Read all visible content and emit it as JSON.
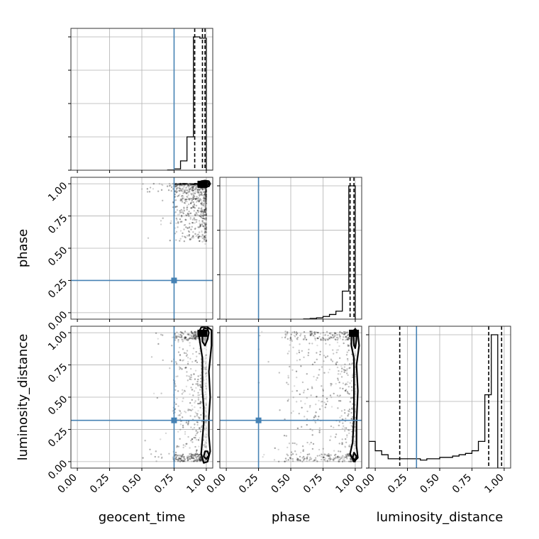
{
  "chart_data": {
    "type": "corner",
    "parameters": [
      "geocent_time",
      "phase",
      "luminosity_distance"
    ],
    "axis_labels": {
      "geocent_time": "geocent_time",
      "phase": "phase",
      "luminosity_distance": "luminosity_distance"
    },
    "range": [
      -0.05,
      1.05
    ],
    "ticks": [
      0.0,
      0.25,
      0.5,
      0.75,
      1.0
    ],
    "tick_labels": [
      "0.00",
      "0.25",
      "0.50",
      "0.75",
      "1.00"
    ],
    "truths": {
      "geocent_time": 0.75,
      "phase": 0.25,
      "luminosity_distance": 0.32
    },
    "truth_color": "#4682b4",
    "grid": true,
    "histograms": [
      {
        "param": "geocent_time",
        "bins": [
          0.7,
          0.75,
          0.8,
          0.85,
          0.9,
          0.95,
          1.0,
          1.05
        ],
        "counts": [
          0.2,
          1,
          7,
          25,
          100,
          99,
          0
        ],
        "quantiles": [
          0.91,
          0.97,
          0.99
        ],
        "y_tick_count": 5
      },
      {
        "param": "phase",
        "bins": [
          0.6,
          0.65,
          0.7,
          0.75,
          0.8,
          0.85,
          0.9,
          0.95,
          1.0
        ],
        "counts": [
          0.2,
          0.5,
          1,
          2,
          3.5,
          6,
          21,
          100
        ],
        "quantiles": [
          0.96,
          0.99
        ],
        "y_tick_count": 4
      },
      {
        "param": "luminosity_distance",
        "bins": [
          -0.05,
          0.0,
          0.05,
          0.1,
          0.15,
          0.2,
          0.25,
          0.3,
          0.35,
          0.4,
          0.45,
          0.5,
          0.55,
          0.6,
          0.65,
          0.7,
          0.75,
          0.8,
          0.85,
          0.9,
          0.95,
          1.0
        ],
        "counts": [
          0.2,
          0.13,
          0.1,
          0.07,
          0.07,
          0.07,
          0.07,
          0.07,
          0.06,
          0.07,
          0.07,
          0.08,
          0.08,
          0.09,
          0.1,
          0.11,
          0.13,
          0.2,
          0.55,
          1.0,
          0.0
        ],
        "quantiles": [
          0.19,
          0.88,
          0.98
        ],
        "y_tick_count": 3
      }
    ],
    "scatter_panels": [
      {
        "x": "geocent_time",
        "y": "phase",
        "core": [
          0.97,
          0.99
        ],
        "contour_1": [
          [
            0.94,
            1.0
          ],
          [
            0.96,
            1.02
          ],
          [
            0.99,
            1.025
          ],
          [
            1.02,
            1.02
          ],
          [
            1.03,
            1.0
          ],
          [
            1.02,
            0.98
          ],
          [
            0.99,
            0.975
          ],
          [
            0.96,
            0.98
          ]
        ],
        "contour_2": [
          [
            0.95,
            1.0
          ],
          [
            0.97,
            1.01
          ],
          [
            0.99,
            1.015
          ],
          [
            1.01,
            1.01
          ],
          [
            1.02,
            1.0
          ],
          [
            1.01,
            0.99
          ],
          [
            0.99,
            0.985
          ],
          [
            0.97,
            0.99
          ]
        ]
      },
      {
        "x": "geocent_time",
        "y": "luminosity_distance",
        "core": [
          0.97,
          0.99
        ],
        "contour_1": [
          [
            0.94,
            1.0
          ],
          [
            0.95,
            0.93
          ],
          [
            0.97,
            0.8
          ],
          [
            0.97,
            0.55
          ],
          [
            0.98,
            0.42
          ],
          [
            0.98,
            0.3
          ],
          [
            0.97,
            0.18
          ],
          [
            0.96,
            0.06
          ],
          [
            0.98,
            -0.01
          ],
          [
            1.01,
            0.0
          ],
          [
            1.03,
            0.08
          ],
          [
            1.02,
            0.2
          ],
          [
            1.02,
            0.35
          ],
          [
            1.03,
            0.5
          ],
          [
            1.02,
            0.7
          ],
          [
            1.04,
            0.9
          ],
          [
            1.04,
            1.02
          ],
          [
            1.0,
            1.05
          ],
          [
            0.96,
            1.04
          ]
        ],
        "contour_2": [
          [
            0.97,
            1.0
          ],
          [
            0.97,
            0.93
          ],
          [
            0.99,
            0.9
          ],
          [
            1.01,
            0.95
          ],
          [
            1.02,
            1.0
          ],
          [
            1.01,
            1.03
          ],
          [
            0.99,
            1.035
          ],
          [
            0.98,
            1.03
          ]
        ],
        "bottom_lobe": [
          [
            0.98,
            0.04
          ],
          [
            1.0,
            0.02
          ],
          [
            1.02,
            0.05
          ],
          [
            1.01,
            0.08
          ],
          [
            0.99,
            0.08
          ]
        ]
      },
      {
        "x": "phase",
        "y": "luminosity_distance",
        "core": [
          0.99,
          0.99
        ],
        "contour_1": [
          [
            0.97,
            1.0
          ],
          [
            0.97,
            0.9
          ],
          [
            0.99,
            0.8
          ],
          [
            0.99,
            0.55
          ],
          [
            0.99,
            0.35
          ],
          [
            0.98,
            0.15
          ],
          [
            0.96,
            0.06
          ],
          [
            0.99,
            0.0
          ],
          [
            1.02,
            0.03
          ],
          [
            1.01,
            0.12
          ],
          [
            1.01,
            0.3
          ],
          [
            1.02,
            0.55
          ],
          [
            1.01,
            0.75
          ],
          [
            1.03,
            0.9
          ],
          [
            1.02,
            1.0
          ],
          [
            1.0,
            1.03
          ]
        ],
        "contour_2": [
          [
            0.985,
            0.98
          ],
          [
            0.99,
            0.9
          ],
          [
            1.0,
            0.88
          ],
          [
            1.01,
            0.95
          ],
          [
            1.01,
            1.0
          ],
          [
            0.995,
            1.015
          ]
        ],
        "bottom_lobe": [
          [
            0.98,
            0.03
          ],
          [
            1.0,
            0.01
          ],
          [
            1.01,
            0.04
          ],
          [
            0.99,
            0.07
          ]
        ]
      }
    ]
  }
}
